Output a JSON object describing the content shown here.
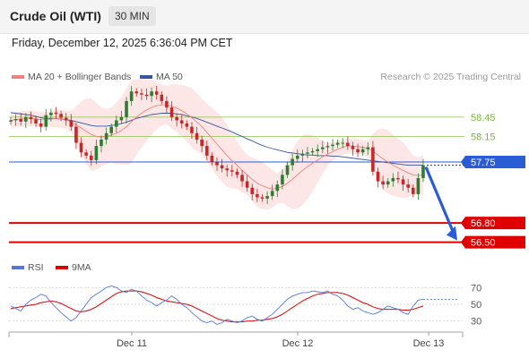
{
  "header": {
    "instrument": "Crude Oil (WTI)",
    "timeframe": "30 MIN"
  },
  "datetime": "Friday, December 12, 2025 6:36:04 PM CET",
  "legend": {
    "ma20": {
      "label": "MA 20 + Bollinger Bands",
      "color": "#f08080"
    },
    "ma50": {
      "label": "MA 50",
      "color": "#3557a0"
    },
    "rsi": {
      "label": "RSI",
      "color": "#5577dd"
    },
    "rsi_ma": {
      "label": "9MA",
      "color": "#dd0000"
    }
  },
  "copyright": "Research © 2025 Trading Central",
  "colors": {
    "up": "#2e7d32",
    "down": "#c62828",
    "band": "#fde0e0",
    "support": "#e00000",
    "resistance": "#8bc34a",
    "pivot": "#2a5cd6"
  },
  "chart_data": [
    {
      "type": "candlestick",
      "ylim": [
        56.3,
        58.95
      ],
      "x_labels": [
        "Dec 11",
        "Dec 12",
        "Dec 13"
      ],
      "levels": [
        {
          "label": "58.45",
          "value": 58.45,
          "kind": "resistance"
        },
        {
          "label": "58.15",
          "value": 58.15,
          "kind": "resistance"
        },
        {
          "label": "57.75",
          "value": 57.75,
          "kind": "pivot"
        },
        {
          "label": "56.80",
          "value": 56.8,
          "kind": "support"
        },
        {
          "label": "56.50",
          "value": 56.5,
          "kind": "support"
        }
      ],
      "close_series": [
        58.4,
        58.42,
        58.38,
        58.45,
        58.42,
        58.35,
        58.3,
        58.48,
        58.52,
        58.5,
        58.44,
        58.4,
        58.3,
        58.05,
        57.9,
        57.85,
        57.78,
        58.0,
        58.1,
        58.2,
        58.3,
        58.4,
        58.45,
        58.7,
        58.85,
        58.82,
        58.8,
        58.78,
        58.85,
        58.8,
        58.7,
        58.6,
        58.45,
        58.4,
        58.35,
        58.3,
        58.2,
        58.1,
        58.0,
        57.85,
        57.75,
        57.7,
        57.65,
        57.62,
        57.6,
        57.55,
        57.45,
        57.35,
        57.25,
        57.2,
        57.18,
        57.22,
        57.3,
        57.4,
        57.55,
        57.7,
        57.8,
        57.85,
        57.88,
        57.9,
        57.92,
        57.95,
        57.98,
        58.0,
        58.02,
        58.05,
        58.05,
        58.0,
        57.95,
        57.9,
        57.95,
        57.98,
        57.6,
        57.45,
        57.4,
        57.45,
        57.5,
        57.48,
        57.4,
        57.35,
        57.25,
        57.5,
        57.7
      ],
      "ma20_series": [
        58.4,
        58.41,
        58.42,
        58.43,
        58.43,
        58.42,
        58.41,
        58.41,
        58.42,
        58.43,
        58.42,
        58.41,
        58.38,
        58.33,
        58.28,
        58.23,
        58.18,
        58.15,
        58.14,
        58.15,
        58.17,
        58.2,
        58.24,
        58.3,
        58.38,
        58.45,
        58.51,
        58.56,
        58.6,
        58.63,
        58.64,
        58.64,
        58.62,
        58.59,
        58.55,
        58.5,
        58.44,
        58.37,
        58.3,
        58.21,
        58.12,
        58.03,
        57.94,
        57.85,
        57.77,
        57.7,
        57.62,
        57.55,
        57.48,
        57.42,
        57.38,
        57.35,
        57.33,
        57.34,
        57.37,
        57.42,
        57.48,
        57.55,
        57.62,
        57.68,
        57.73,
        57.78,
        57.83,
        57.87,
        57.91,
        57.95,
        57.98,
        58.0,
        58.0,
        57.99,
        57.98,
        57.96,
        57.92,
        57.86,
        57.8,
        57.75,
        57.7,
        57.66,
        57.62,
        57.58,
        57.55,
        57.54,
        57.55
      ],
      "ma50_series": [
        58.52,
        58.51,
        58.5,
        58.49,
        58.48,
        58.46,
        58.44,
        58.43,
        58.43,
        58.43,
        58.42,
        58.41,
        58.4,
        58.38,
        58.36,
        58.34,
        58.32,
        58.31,
        58.31,
        58.31,
        58.32,
        58.33,
        58.35,
        58.37,
        58.4,
        58.43,
        58.45,
        58.47,
        58.49,
        58.5,
        58.51,
        58.51,
        58.51,
        58.5,
        58.49,
        58.47,
        58.45,
        58.43,
        58.4,
        58.37,
        58.34,
        58.31,
        58.28,
        58.25,
        58.22,
        58.18,
        58.15,
        58.11,
        58.08,
        58.04,
        58.01,
        57.98,
        57.96,
        57.94,
        57.92,
        57.9,
        57.89,
        57.88,
        57.87,
        57.86,
        57.86,
        57.85,
        57.85,
        57.85,
        57.84,
        57.84,
        57.83,
        57.82,
        57.81,
        57.8,
        57.79,
        57.78,
        57.77,
        57.76,
        57.75,
        57.74,
        57.73,
        57.72,
        57.71,
        57.7,
        57.7,
        57.7,
        57.7
      ]
    },
    {
      "type": "line",
      "ylim": [
        20,
        80
      ],
      "ticks": [
        70,
        50,
        30
      ],
      "rsi_series": [
        48,
        45,
        42,
        50,
        55,
        58,
        62,
        60,
        52,
        46,
        40,
        35,
        30,
        34,
        42,
        50,
        58,
        62,
        66,
        70,
        72,
        70,
        66,
        64,
        68,
        66,
        60,
        55,
        52,
        48,
        52,
        55,
        60,
        56,
        50,
        46,
        40,
        35,
        30,
        28,
        30,
        26,
        28,
        32,
        30,
        28,
        30,
        34,
        36,
        32,
        30,
        34,
        38,
        44,
        50,
        56,
        60,
        62,
        64,
        64,
        66,
        65,
        64,
        66,
        62,
        60,
        55,
        48,
        44,
        46,
        42,
        40,
        38,
        40,
        44,
        48,
        46,
        44,
        40,
        38,
        48,
        55,
        56
      ],
      "rsi_ma_series": [
        45,
        46,
        47,
        48,
        49,
        50,
        52,
        53,
        54,
        53,
        51,
        48,
        45,
        42,
        41,
        42,
        44,
        47,
        51,
        55,
        59,
        63,
        65,
        66,
        66,
        66,
        65,
        63,
        61,
        58,
        56,
        54,
        53,
        52,
        51,
        50,
        48,
        45,
        42,
        39,
        36,
        33,
        31,
        30,
        29,
        29,
        29,
        30,
        30,
        31,
        31,
        32,
        33,
        35,
        38,
        42,
        46,
        50,
        54,
        57,
        60,
        62,
        63,
        64,
        64,
        64,
        63,
        61,
        58,
        55,
        52,
        50,
        47,
        45,
        44,
        44,
        44,
        44,
        43,
        43,
        44,
        46,
        48
      ],
      "rsi_projection": [
        56,
        56,
        56,
        56,
        56,
        56
      ]
    }
  ]
}
